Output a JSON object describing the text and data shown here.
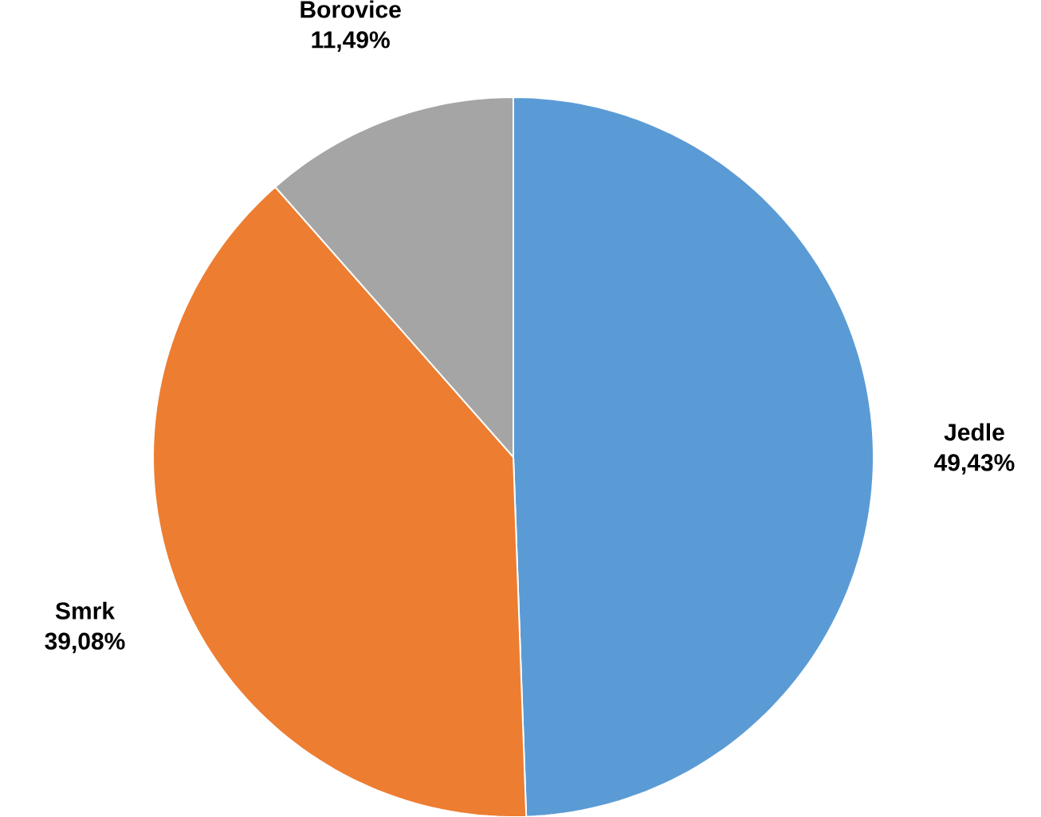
{
  "chart_data": {
    "type": "pie",
    "categories": [
      "Jedle",
      "Smrk",
      "Borovice"
    ],
    "values": [
      49.43,
      39.08,
      11.49
    ],
    "colors": [
      "#5b9bd5",
      "#ed7d31",
      "#a5a5a5"
    ],
    "value_labels": [
      "49,43%",
      "39,08%",
      "11,49%"
    ]
  }
}
